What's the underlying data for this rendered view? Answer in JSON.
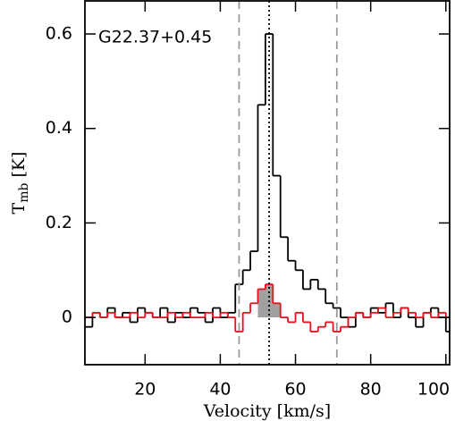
{
  "chart_data": {
    "type": "step",
    "annotation": "G22.37+0.45",
    "xlabel": "Velocity [km/s]",
    "ylabel_parts": [
      "T",
      "mb",
      "[K]"
    ],
    "x": [
      5,
      7,
      9,
      11,
      13,
      15,
      17,
      19,
      21,
      23,
      25,
      27,
      29,
      31,
      33,
      35,
      37,
      39,
      41,
      43,
      45,
      47,
      49,
      51,
      53,
      55,
      57,
      59,
      61,
      63,
      65,
      67,
      69,
      71,
      73,
      75,
      77,
      79,
      81,
      83,
      85,
      87,
      89,
      91,
      93,
      95,
      97,
      99,
      101
    ],
    "series": [
      {
        "color": "#000000",
        "values": [
          -0.02,
          0.01,
          0.0,
          0.02,
          0.0,
          0.01,
          -0.01,
          0.02,
          0.01,
          0.0,
          0.02,
          -0.01,
          0.01,
          0.0,
          0.02,
          0.01,
          -0.01,
          0.02,
          0.0,
          0.01,
          0.07,
          0.1,
          0.14,
          0.45,
          0.6,
          0.3,
          0.17,
          0.12,
          0.1,
          0.06,
          0.08,
          0.06,
          0.03,
          0.02,
          0.0,
          -0.02,
          0.01,
          0.0,
          0.02,
          0.01,
          0.03,
          0.0,
          0.02,
          0.0,
          -0.02,
          0.01,
          0.02,
          0.0,
          -0.03
        ]
      },
      {
        "color": "#e8101a",
        "values": [
          0.0,
          0.01,
          0.0,
          0.01,
          0.0,
          0.0,
          0.01,
          0.0,
          0.01,
          0.0,
          0.0,
          0.01,
          0.0,
          0.01,
          0.0,
          0.0,
          0.01,
          0.0,
          0.01,
          0.0,
          -0.03,
          0.01,
          0.03,
          0.06,
          0.07,
          0.03,
          0.0,
          -0.01,
          0.01,
          -0.01,
          -0.03,
          -0.02,
          -0.01,
          -0.03,
          -0.02,
          0.0,
          0.01,
          0.0,
          0.01,
          0.02,
          0.0,
          0.01,
          0.02,
          0.01,
          0.0,
          0.01,
          0.0,
          0.01,
          0.0
        ]
      }
    ],
    "fill": {
      "series": 1,
      "from": 50,
      "to": 56,
      "color": "#a0a0a0"
    },
    "vlines": [
      {
        "x": 45,
        "style": "dashed",
        "color": "#9a9a9a"
      },
      {
        "x": 53,
        "style": "dotted",
        "color": "#000000"
      },
      {
        "x": 71,
        "style": "dashed",
        "color": "#9a9a9a"
      }
    ],
    "xlim": [
      4,
      101
    ],
    "ylim": [
      -0.1,
      0.67
    ],
    "xticks": [
      20,
      40,
      60,
      80,
      100
    ],
    "yticks": [
      0,
      0.2,
      0.4,
      0.6
    ]
  }
}
